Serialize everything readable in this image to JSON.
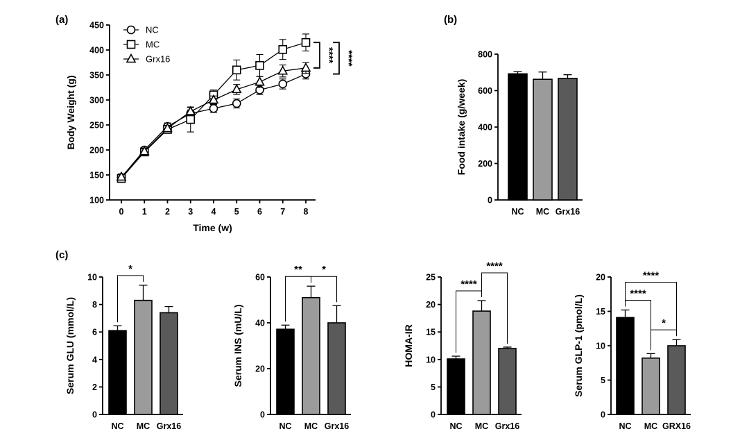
{
  "chart_data": [
    {
      "panel_label": "(a)",
      "type": "line",
      "xlabel": "Time (w)",
      "ylabel": "Body Weight (g)",
      "x": [
        0,
        1,
        2,
        3,
        4,
        5,
        6,
        7,
        8
      ],
      "ylim": [
        100,
        450
      ],
      "yticks": [
        100,
        150,
        200,
        250,
        300,
        350,
        400,
        450
      ],
      "series": [
        {
          "name": "NC",
          "marker": "circle",
          "values": [
            145,
            200,
            247,
            273,
            283,
            293,
            320,
            332,
            352
          ],
          "error": [
            5,
            5,
            7,
            7,
            8,
            9,
            9,
            10,
            10
          ]
        },
        {
          "name": "MC",
          "marker": "square",
          "values": [
            143,
            196,
            241,
            261,
            310,
            360,
            369,
            401,
            415
          ],
          "error": [
            5,
            5,
            6,
            25,
            10,
            20,
            22,
            20,
            17
          ]
        },
        {
          "name": "Grx16",
          "marker": "triangle",
          "values": [
            146,
            197,
            243,
            277,
            300,
            321,
            336,
            358,
            364
          ],
          "error": [
            6,
            5,
            6,
            8,
            8,
            10,
            11,
            12,
            11
          ]
        }
      ],
      "annotations": [
        {
          "text": "****",
          "from": "MC",
          "to": "Grx16"
        },
        {
          "text": "****",
          "from": "MC",
          "to": "NC"
        }
      ]
    },
    {
      "panel_label": "(b)",
      "type": "bar",
      "categories": [
        "NC",
        "MC",
        "Grx16"
      ],
      "values": [
        692,
        662,
        667
      ],
      "error": [
        12,
        40,
        20
      ],
      "ylabel": "Food intake (g/week)",
      "ylim": [
        0,
        800
      ],
      "yticks": [
        0,
        200,
        400,
        600,
        800
      ]
    },
    {
      "panel_label": "(c)",
      "type": "bar",
      "categories": [
        "NC",
        "MC",
        "Grx16"
      ],
      "values": [
        6.1,
        8.3,
        7.4
      ],
      "error": [
        0.35,
        1.1,
        0.45
      ],
      "ylabel": "Serum GLU (mmol/L)",
      "ylim": [
        0,
        10
      ],
      "yticks": [
        0,
        2,
        4,
        6,
        8,
        10
      ],
      "annotations": [
        {
          "text": "*",
          "from": 0,
          "to": 1
        }
      ]
    },
    {
      "type": "bar",
      "categories": [
        "NC",
        "MC",
        "Grx16"
      ],
      "values": [
        37.2,
        51,
        40
      ],
      "error": [
        1.8,
        5,
        7.5
      ],
      "ylabel": "Serum INS (mU/L)",
      "ylim": [
        0,
        60
      ],
      "yticks": [
        0,
        20,
        40,
        60
      ],
      "annotations": [
        {
          "text": "**",
          "from": 0,
          "to": 1
        },
        {
          "text": "*",
          "from": 1,
          "to": 2
        }
      ]
    },
    {
      "type": "bar",
      "categories": [
        "NC",
        "MC",
        "Grx16"
      ],
      "values": [
        10.1,
        18.8,
        12
      ],
      "error": [
        0.5,
        1.9,
        0.25
      ],
      "ylabel": "HOMA-IR",
      "ylim": [
        0,
        25
      ],
      "yticks": [
        0,
        5,
        10,
        15,
        20,
        25
      ],
      "annotations": [
        {
          "text": "****",
          "from": 0,
          "to": 1
        },
        {
          "text": "****",
          "from": 1,
          "to": 2
        }
      ]
    },
    {
      "type": "bar",
      "categories": [
        "NC",
        "MC",
        "GRX16"
      ],
      "values": [
        14.1,
        8.2,
        10
      ],
      "error": [
        1.1,
        0.65,
        0.9
      ],
      "ylabel": "Serum GLP-1 (pmol/L)",
      "ylim": [
        0,
        20
      ],
      "yticks": [
        0,
        5,
        10,
        15,
        20
      ],
      "annotations": [
        {
          "text": "****",
          "from": 0,
          "to": 2
        },
        {
          "text": "****",
          "from": 0,
          "to": 1
        },
        {
          "text": "*",
          "from": 1,
          "to": 2
        }
      ]
    }
  ],
  "colors": {
    "bars": [
      "#000000",
      "#9b9b9b",
      "#5a5a5a"
    ],
    "axis": "#000000"
  }
}
